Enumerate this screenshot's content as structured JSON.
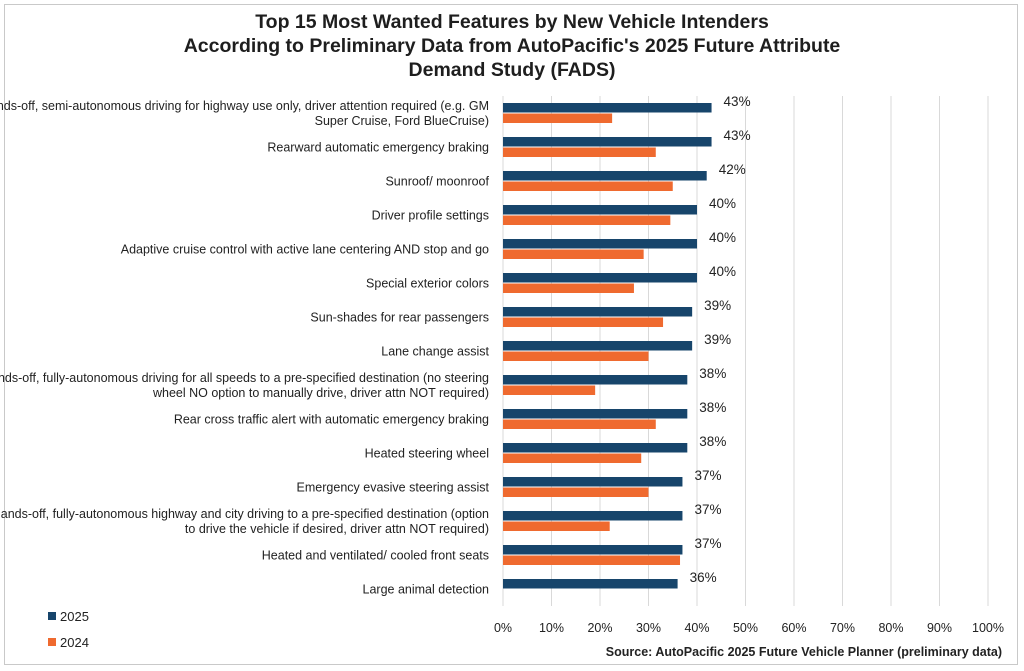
{
  "title_lines": [
    "Top 15 Most Wanted Features by New Vehicle Intenders",
    "According to Preliminary Data from AutoPacific's 2025 Future Attribute",
    "Demand Study (FADS)"
  ],
  "source": "Source: AutoPacific 2025 Future Vehicle Planner (preliminary data)",
  "colors": {
    "2025": "#17456b",
    "2024": "#ef6a2f",
    "grid": "#d9d9d9"
  },
  "chart_data": {
    "type": "bar",
    "orientation": "horizontal",
    "title": "Top 15 Most Wanted Features by New Vehicle Intenders According to Preliminary Data from AutoPacific's 2025 Future Attribute Demand Study (FADS)",
    "categories": [
      [
        "Hands-off, semi-autonomous driving for highway use only, driver attention required (e.g. GM",
        "Super Cruise, Ford BlueCruise)"
      ],
      [
        "Rearward automatic emergency braking"
      ],
      [
        "Sunroof/ moonroof"
      ],
      [
        "Driver profile settings"
      ],
      [
        "Adaptive cruise control with active lane centering AND stop and go"
      ],
      [
        "Special exterior colors"
      ],
      [
        "Sun-shades for rear passengers"
      ],
      [
        "Lane change assist"
      ],
      [
        "Hands-off, fully-autonomous driving for all speeds to a pre-specified destination (no steering",
        "wheel NO option to manually drive, driver attn NOT required)"
      ],
      [
        "Rear cross traffic alert with automatic emergency braking"
      ],
      [
        "Heated steering wheel"
      ],
      [
        "Emergency evasive steering assist"
      ],
      [
        "Hands-off, fully-autonomous highway and city driving to a pre-specified destination (option",
        "to drive the vehicle if desired, driver attn NOT required)"
      ],
      [
        "Heated and ventilated/ cooled front seats"
      ],
      [
        "Large animal detection"
      ]
    ],
    "series": [
      {
        "name": "2025",
        "values": [
          43,
          43,
          42,
          40,
          40,
          40,
          39,
          39,
          38,
          38,
          38,
          37,
          37,
          37,
          36
        ],
        "labels": [
          "43%",
          "43%",
          "42%",
          "40%",
          "40%",
          "40%",
          "39%",
          "39%",
          "38%",
          "38%",
          "38%",
          "37%",
          "37%",
          "37%",
          "36%"
        ]
      },
      {
        "name": "2024",
        "values": [
          22.5,
          31.5,
          35,
          34.5,
          29,
          27,
          33,
          30,
          19,
          31.5,
          28.5,
          30,
          22,
          36.5,
          null
        ]
      }
    ],
    "xlim": [
      0,
      100
    ],
    "xticks": [
      "0%",
      "10%",
      "20%",
      "30%",
      "40%",
      "50%",
      "60%",
      "70%",
      "80%",
      "90%",
      "100%"
    ],
    "grid": true,
    "legend": "bottom-left"
  }
}
